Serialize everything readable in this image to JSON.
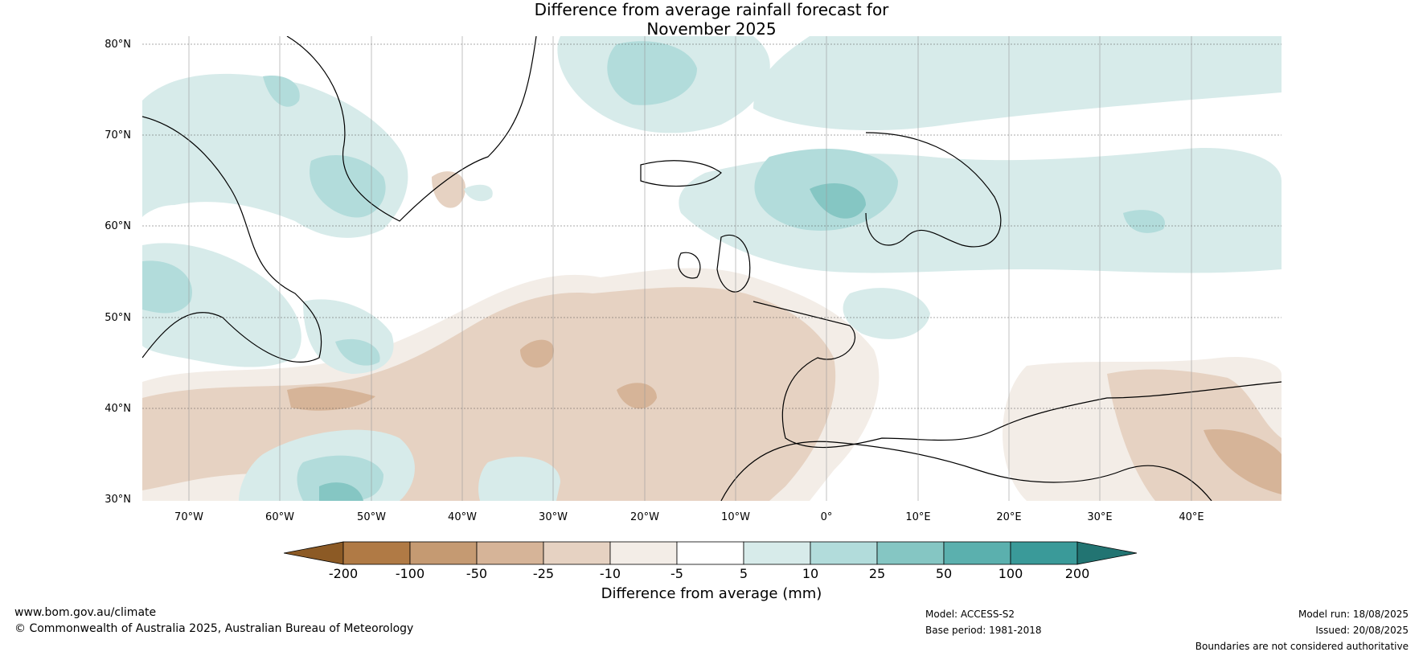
{
  "title_line1": "Difference from average rainfall forecast for",
  "title_line2": "November 2025",
  "lat_labels": [
    "80°N",
    "70°N",
    "60°N",
    "50°N",
    "40°N",
    "30°N"
  ],
  "lon_labels": [
    "70°W",
    "60°W",
    "50°W",
    "40°W",
    "30°W",
    "20°W",
    "10°W",
    "0°",
    "10°E",
    "20°E",
    "30°E",
    "40°E"
  ],
  "colorbar": {
    "title": "Difference from average (mm)",
    "labels": [
      "-200",
      "-100",
      "-50",
      "-25",
      "-10",
      "-5",
      "5",
      "10",
      "25",
      "50",
      "100",
      "200"
    ],
    "colors": [
      "#8c5a25",
      "#b07a45",
      "#c59a72",
      "#d6b498",
      "#e6d2c2",
      "#f3ede7",
      "#ffffff",
      "#d7ebea",
      "#b2dcdb",
      "#85c6c3",
      "#5bb0ae",
      "#3a9a99",
      "#227472"
    ]
  },
  "footer": {
    "website": "www.bom.gov.au/climate",
    "copyright": "© Commonwealth of Australia 2025, Australian Bureau of Meteorology",
    "model": "Model: ACCESS-S2",
    "base_period": "Base period: 1981-2018",
    "model_run": "Model run: 18/08/2025",
    "issued": "Issued: 20/08/2025",
    "boundaries": "Boundaries are not considered authoritative"
  }
}
